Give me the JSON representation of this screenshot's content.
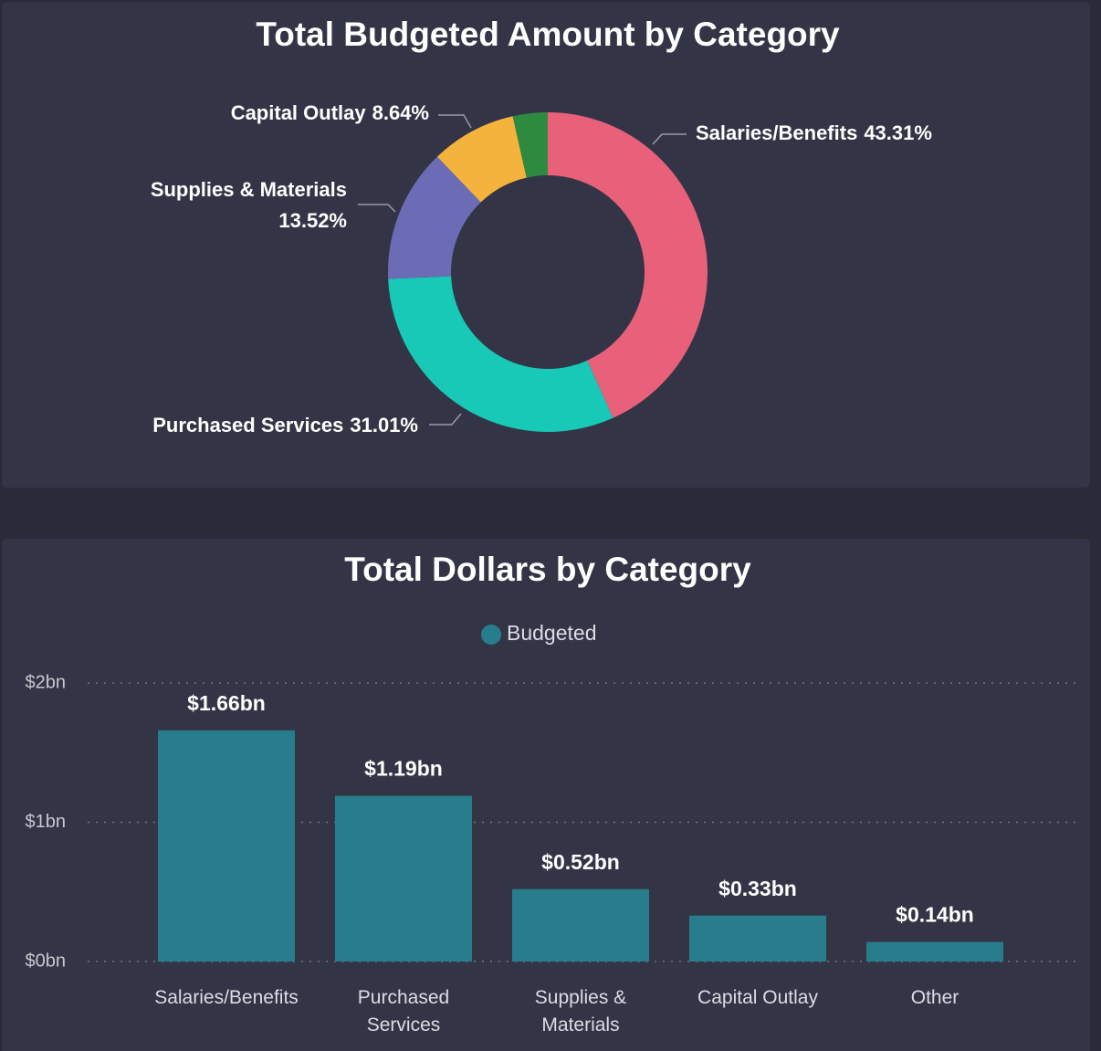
{
  "chart_data": [
    {
      "type": "donut",
      "title": "Total Budgeted Amount by Category",
      "categories": [
        "Salaries/Benefits",
        "Purchased Services",
        "Supplies & Materials",
        "Capital Outlay",
        null
      ],
      "values": [
        43.31,
        31.01,
        13.52,
        8.64,
        3.52
      ],
      "value_labels": [
        "43.31%",
        "31.01%",
        "13.52%",
        "8.64%",
        null
      ],
      "colors": [
        "#e8607a",
        "#17c9b6",
        "#6c6cb6",
        "#f4b33c",
        "#2e8a3f"
      ]
    },
    {
      "type": "bar",
      "title": "Total Dollars by Category",
      "categories": [
        "Salaries/Benefits",
        "Purchased Services",
        "Supplies & Materials",
        "Capital Outlay",
        "Other"
      ],
      "series": [
        {
          "name": "Budgeted",
          "color": "#287d8c",
          "values": [
            1.66,
            1.19,
            0.52,
            0.33,
            0.14
          ],
          "value_labels": [
            "$1.66bn",
            "$1.19bn",
            "$0.52bn",
            "$0.33bn",
            "$0.14bn"
          ]
        }
      ],
      "ylim": [
        0,
        2
      ],
      "yticks": [
        {
          "value": 0,
          "label": "$0bn"
        },
        {
          "value": 1,
          "label": "$1bn"
        },
        {
          "value": 2,
          "label": "$2bn"
        }
      ],
      "grid": true,
      "legend": "top"
    }
  ]
}
